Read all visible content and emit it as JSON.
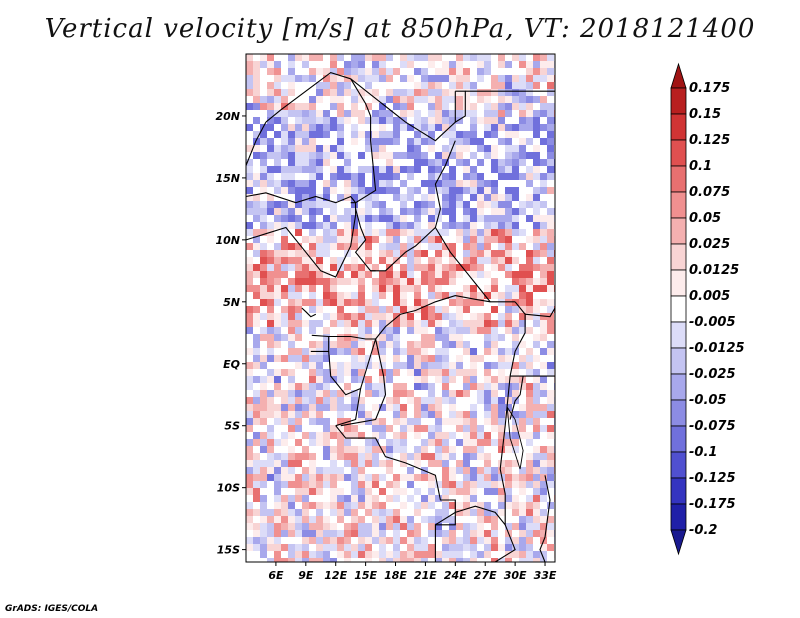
{
  "title": "Vertical velocity [m/s] at 850hPa, VT: 2018121400",
  "map": {
    "lat_range": [
      -16,
      25
    ],
    "lon_range": [
      3,
      34
    ],
    "lat_labels": [
      "20N",
      "15N",
      "10N",
      "5N",
      "EQ",
      "5S",
      "10S",
      "15S"
    ],
    "lon_labels": [
      "6E",
      "9E",
      "12E",
      "15E",
      "18E",
      "21E",
      "24E",
      "27E",
      "30E",
      "33E"
    ],
    "positive_band_note": "",
    "border_color": "#000000"
  },
  "colorbar": {
    "labels": [
      "0.175",
      "0.15",
      "0.125",
      "0.1",
      "0.075",
      "0.05",
      "0.025",
      "0.0125",
      "0.005",
      "-0.005",
      "-0.0125",
      "-0.025",
      "-0.05",
      "-0.075",
      "-0.1",
      "-0.125",
      "-0.175",
      "-0.2"
    ],
    "colors": [
      "#a01414",
      "#b82020",
      "#d03434",
      "#e05050",
      "#e87070",
      "#f09090",
      "#f4b0b0",
      "#f8d4d4",
      "#fdecec",
      "#ffffff",
      "#dcdcf8",
      "#c4c4f2",
      "#a8a8ec",
      "#8c8ce4",
      "#7070dc",
      "#5050d0",
      "#3434c0",
      "#2020a8",
      "#1a1a90"
    ]
  },
  "credit": "GrADS: IGES/COLA"
}
